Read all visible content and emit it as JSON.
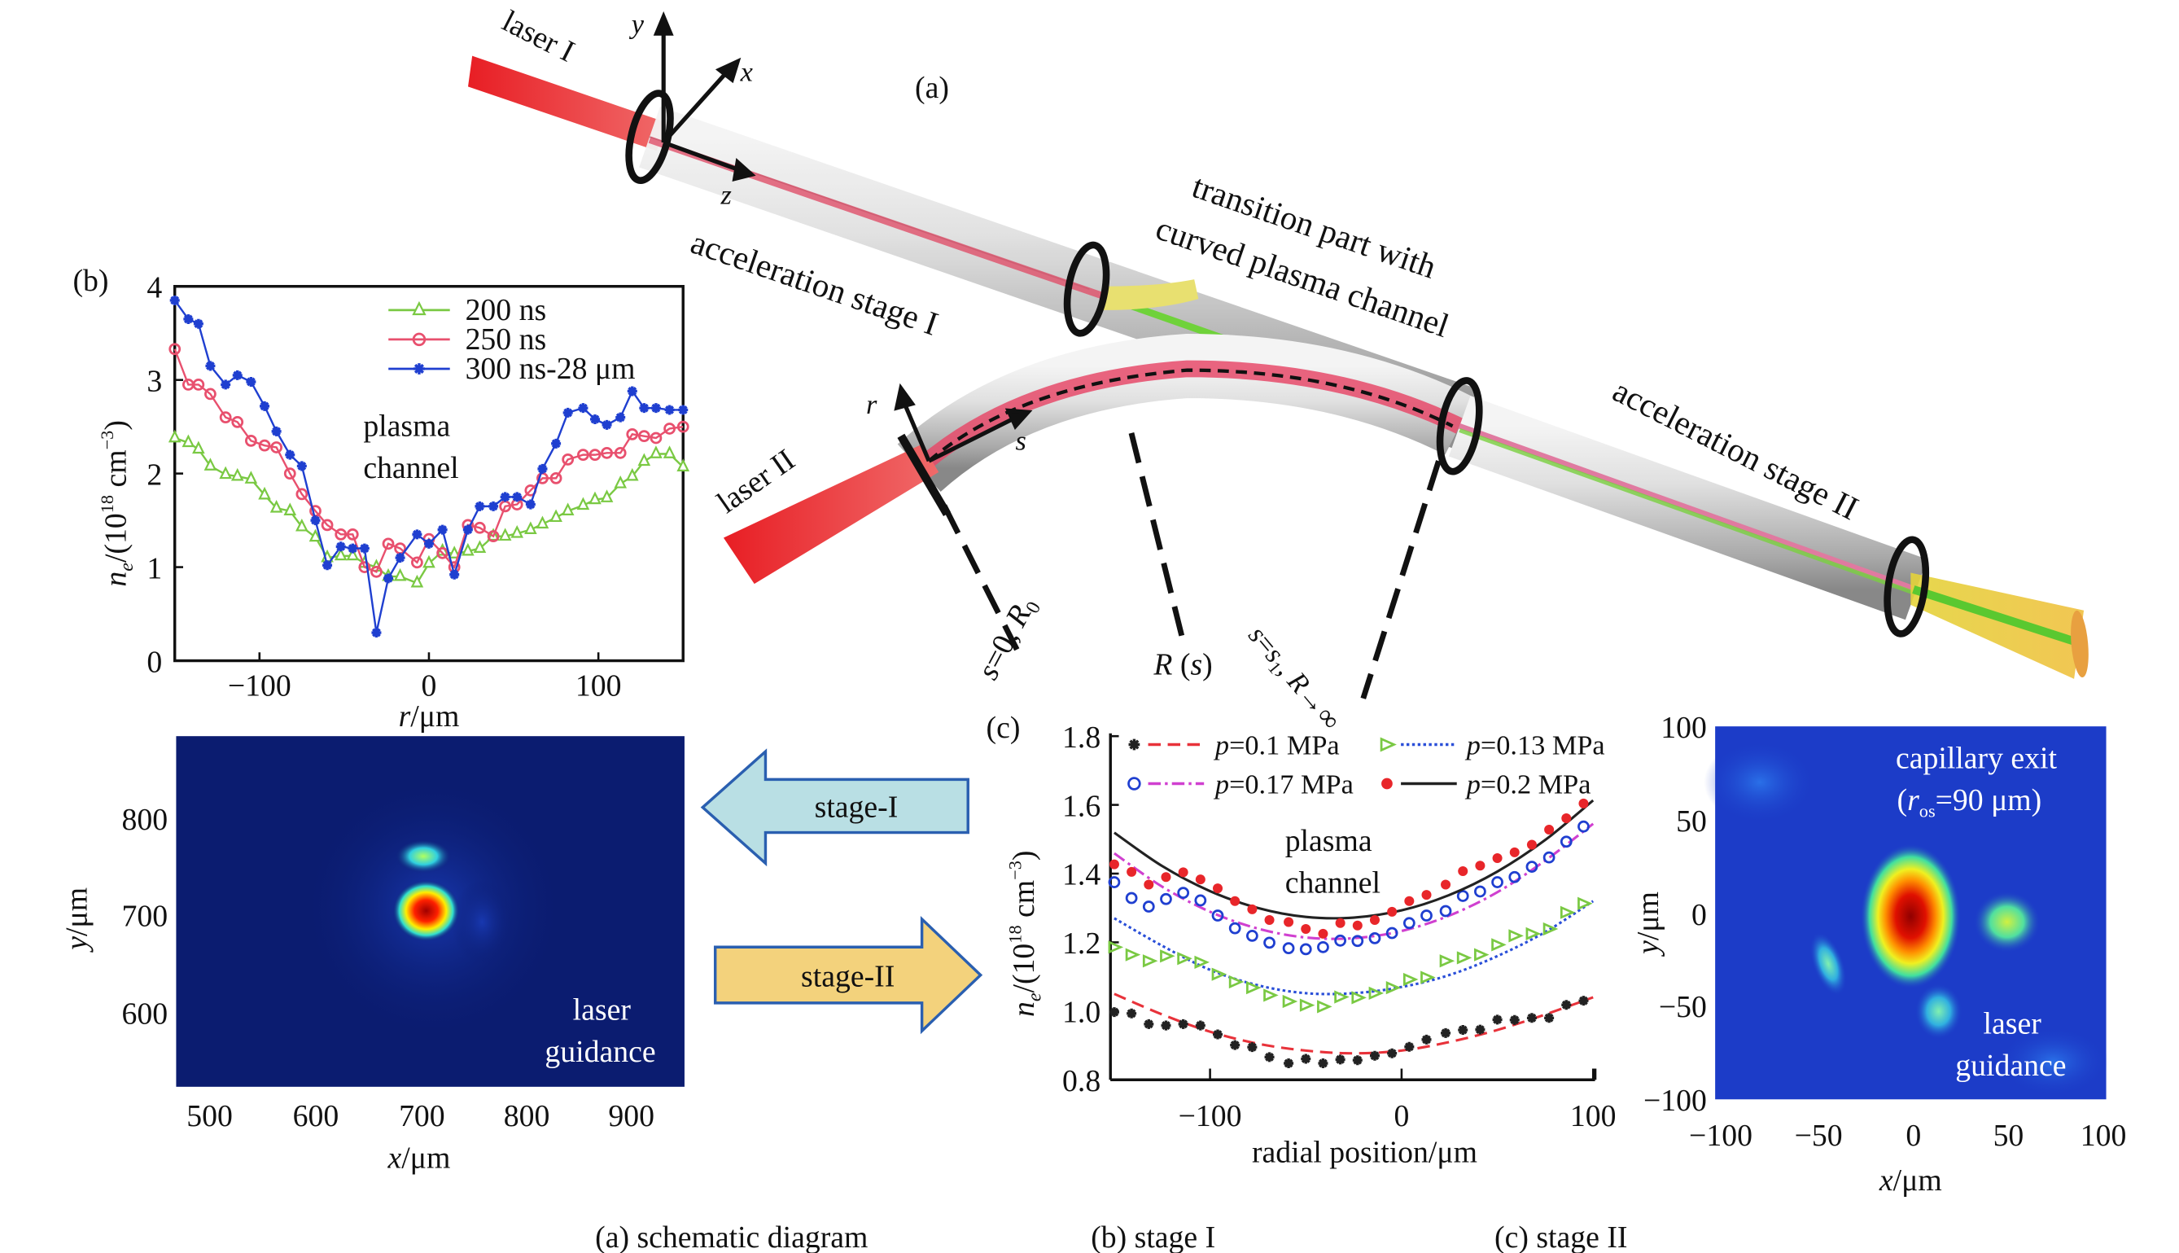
{
  "schematic": {
    "panel_label": "(a)",
    "laser1": "laser I",
    "laser2": "laser II",
    "axis_x": "x",
    "axis_y": "y",
    "axis_z": "z",
    "axis_r": "r",
    "axis_s": "s",
    "stage1": "acceleration stage I",
    "stage2": "acceleration stage II",
    "transition_line1": "transition part with",
    "transition_line2": "curved plasma channel",
    "s0_label": {
      "s": "s",
      "eq": "=0, ",
      "R": "R",
      "sub": "0"
    },
    "Rs_label": {
      "R": "R",
      "open": " (",
      "s": "s",
      "close": ")"
    },
    "s1_label": {
      "s": "s",
      "eq": "=",
      "s1": "s",
      "sub": "1",
      "comma": ", ",
      "R": "R",
      "arrow": "→∞"
    },
    "colors": {
      "laser": "#e8262a",
      "tube": "#c8c8c8",
      "green_beam": "#6fd23a",
      "exit_cone": "#e8d23a"
    }
  },
  "arrows": {
    "stage1": {
      "label": "stage-I",
      "direction": "left",
      "fill": "#b9dfe4"
    },
    "stage2": {
      "label": "stage-II",
      "direction": "right",
      "fill": "#f3d27c"
    }
  },
  "captions": [
    "(a) schematic diagram",
    "(b) stage I",
    "(c) stage II"
  ],
  "chart_data": [
    {
      "panel_label": "(b)",
      "type": "line",
      "xlabel": {
        "var": "r",
        "unit": "/μm"
      },
      "ylabel": {
        "n": "n",
        "sub": "e",
        "a": "/(10",
        "sup": "18",
        "b": " cm",
        "sup2": "−3",
        "c": ")"
      },
      "xlim": [
        -150,
        150
      ],
      "ylim": [
        0,
        4
      ],
      "xticks": [
        "−100",
        "0",
        "100"
      ],
      "xtick_values": [
        -100,
        0,
        100
      ],
      "yticks": [
        "0",
        "1",
        "2",
        "3",
        "4"
      ],
      "ytick_values": [
        0,
        1,
        2,
        3,
        4
      ],
      "annotation": [
        "plasma",
        "channel"
      ],
      "legend_position": "top-right",
      "x": [
        -150,
        -142,
        -136,
        -129,
        -120,
        -113,
        -105,
        -97,
        -90,
        -82,
        -75,
        -67,
        -60,
        -52,
        -45,
        -38,
        -31,
        -24,
        -17,
        -7,
        0,
        8,
        15,
        23,
        30,
        38,
        45,
        52,
        60,
        67,
        75,
        82,
        91,
        98,
        105,
        113,
        120,
        127,
        134,
        142,
        150
      ],
      "series": [
        {
          "name": "200 ns",
          "color": "#7ac943",
          "marker": "open-triangle",
          "values": [
            2.38,
            2.33,
            2.26,
            2.08,
            1.99,
            1.97,
            1.94,
            1.77,
            1.63,
            1.6,
            1.43,
            1.32,
            1.1,
            1.12,
            1.12,
            1.04,
            1.0,
            0.9,
            0.9,
            0.83,
            1.04,
            1.17,
            1.14,
            1.17,
            1.2,
            1.33,
            1.33,
            1.36,
            1.4,
            1.46,
            1.53,
            1.6,
            1.66,
            1.72,
            1.74,
            1.89,
            1.97,
            2.13,
            2.21,
            2.21,
            2.07
          ]
        },
        {
          "name": "250 ns",
          "color": "#e8506e",
          "marker": "open-circle",
          "values": [
            3.33,
            2.95,
            2.95,
            2.85,
            2.6,
            2.55,
            2.35,
            2.3,
            2.28,
            2.0,
            1.78,
            1.6,
            1.45,
            1.35,
            1.35,
            1.0,
            0.95,
            1.25,
            1.2,
            1.05,
            1.3,
            1.15,
            1.0,
            1.45,
            1.42,
            1.33,
            1.65,
            1.67,
            1.82,
            1.95,
            1.95,
            2.15,
            2.2,
            2.2,
            2.22,
            2.22,
            2.42,
            2.4,
            2.38,
            2.48,
            2.5
          ]
        },
        {
          "name": "300 ns-28 μm",
          "color": "#1f3fd0",
          "marker": "star",
          "values": [
            3.85,
            3.65,
            3.6,
            3.15,
            2.95,
            3.05,
            2.98,
            2.72,
            2.45,
            2.2,
            2.08,
            1.5,
            1.02,
            1.22,
            1.2,
            1.2,
            0.3,
            0.88,
            1.1,
            1.35,
            1.25,
            1.4,
            0.92,
            1.4,
            1.65,
            1.65,
            1.75,
            1.75,
            1.67,
            2.05,
            2.32,
            2.65,
            2.7,
            2.58,
            2.52,
            2.6,
            2.88,
            2.7,
            2.7,
            2.68,
            2.68
          ]
        }
      ]
    },
    {
      "panel_label": "(c)",
      "type": "scatter",
      "xlabel": "radial position/μm",
      "ylabel": {
        "n": "n",
        "sub": "e",
        "a": "/(10",
        "sup": "18",
        "b": " cm",
        "sup2": "−3",
        "c": ")"
      },
      "xlim": [
        -152,
        101
      ],
      "ylim": [
        0.8,
        1.8
      ],
      "xticks": [
        "−100",
        "0",
        "100"
      ],
      "xtick_values": [
        -100,
        0,
        100
      ],
      "yticks": [
        "0.8",
        "1.0",
        "1.2",
        "1.4",
        "1.6",
        "1.8"
      ],
      "ytick_values": [
        0.8,
        1.0,
        1.2,
        1.4,
        1.6,
        1.8
      ],
      "annotation": [
        "plasma",
        "channel"
      ],
      "legend_position": "top",
      "x": [
        -150,
        -141,
        -132,
        -123,
        -114,
        -105,
        -96,
        -87,
        -78,
        -69,
        -59,
        -50,
        -41,
        -32,
        -23,
        -14,
        -5,
        4,
        13,
        23,
        32,
        41,
        50,
        59,
        68,
        77,
        86,
        95
      ],
      "fit_x": [
        -150,
        -125,
        -100,
        -75,
        -50,
        -25,
        0,
        25,
        50,
        75,
        100
      ],
      "series": [
        {
          "p": "p",
          "name": "=0.1 MPa",
          "marker": "star",
          "marker_color": "#222222",
          "line_color": "#e8323a",
          "line_style": "dashed",
          "values": [
            0.997,
            0.993,
            0.962,
            0.958,
            0.962,
            0.958,
            0.932,
            0.901,
            0.895,
            0.866,
            0.848,
            0.861,
            0.848,
            0.859,
            0.857,
            0.87,
            0.877,
            0.896,
            0.917,
            0.936,
            0.945,
            0.946,
            0.975,
            0.974,
            0.98,
            0.98,
            1.018,
            1.03
          ],
          "fit": [
            1.05,
            0.99,
            0.94,
            0.905,
            0.885,
            0.877,
            0.885,
            0.91,
            0.945,
            0.99,
            1.04
          ]
        },
        {
          "p": "p",
          "name": "=0.13 MPa",
          "marker": "open-right-triangle",
          "marker_color": "#7ac943",
          "line_color": "#2a4fd8",
          "line_style": "dotted",
          "values": [
            1.186,
            1.164,
            1.146,
            1.16,
            1.153,
            1.142,
            1.107,
            1.085,
            1.068,
            1.046,
            1.028,
            1.017,
            1.013,
            1.041,
            1.039,
            1.052,
            1.068,
            1.092,
            1.098,
            1.146,
            1.155,
            1.164,
            1.193,
            1.219,
            1.225,
            1.239,
            1.287,
            1.313
          ],
          "fit": [
            1.27,
            1.19,
            1.12,
            1.075,
            1.052,
            1.052,
            1.07,
            1.105,
            1.16,
            1.23,
            1.32
          ]
        },
        {
          "p": "p",
          "name": "=0.17 MPa",
          "marker": "open-circle",
          "marker_color": "#1f3fd0",
          "line_color": "#d040d0",
          "line_style": "dash-dot",
          "values": [
            1.375,
            1.329,
            1.304,
            1.326,
            1.344,
            1.322,
            1.278,
            1.241,
            1.219,
            1.199,
            1.183,
            1.18,
            1.186,
            1.205,
            1.204,
            1.212,
            1.227,
            1.256,
            1.278,
            1.291,
            1.335,
            1.348,
            1.375,
            1.39,
            1.42,
            1.447,
            1.493,
            1.537
          ],
          "fit": [
            1.459,
            1.362,
            1.289,
            1.24,
            1.214,
            1.212,
            1.233,
            1.278,
            1.346,
            1.438,
            1.545
          ]
        },
        {
          "p": "p",
          "name": "=0.2 MPa",
          "marker": "filled-circle",
          "marker_color": "#e8262a",
          "line_color": "#222222",
          "line_style": "solid",
          "values": [
            1.427,
            1.405,
            1.368,
            1.39,
            1.404,
            1.383,
            1.357,
            1.32,
            1.296,
            1.265,
            1.259,
            1.239,
            1.225,
            1.256,
            1.249,
            1.265,
            1.289,
            1.32,
            1.338,
            1.368,
            1.407,
            1.423,
            1.445,
            1.462,
            1.484,
            1.528,
            1.561,
            1.604
          ],
          "fit": [
            1.519,
            1.422,
            1.349,
            1.3,
            1.274,
            1.272,
            1.293,
            1.338,
            1.406,
            1.498,
            1.613
          ]
        }
      ]
    }
  ],
  "image_left": {
    "type": "heatmap",
    "xlabel": {
      "var": "x",
      "unit": "/μm"
    },
    "ylabel": {
      "var": "y",
      "unit": "/μm"
    },
    "xticks": [
      "500",
      "600",
      "700",
      "800",
      "900"
    ],
    "yticks": [
      "800",
      "700",
      "600"
    ],
    "annotation": [
      "laser",
      "guidance"
    ],
    "background": "#0b1c70"
  },
  "image_right": {
    "type": "heatmap",
    "xlabel": {
      "var": "x",
      "unit": "/μm"
    },
    "ylabel": {
      "var": "y",
      "unit": "/μm"
    },
    "xticks": [
      "−100",
      "−50",
      "0",
      "50",
      "100"
    ],
    "yticks": [
      "100",
      "50",
      "0",
      "−50",
      "−100"
    ],
    "title": {
      "line1": "capillary exit",
      "open": "(",
      "r": "r",
      "sub": "os",
      "rest": "=90 μm)"
    },
    "annotation": [
      "laser",
      "guidance"
    ],
    "background": "#1c3cc8"
  }
}
